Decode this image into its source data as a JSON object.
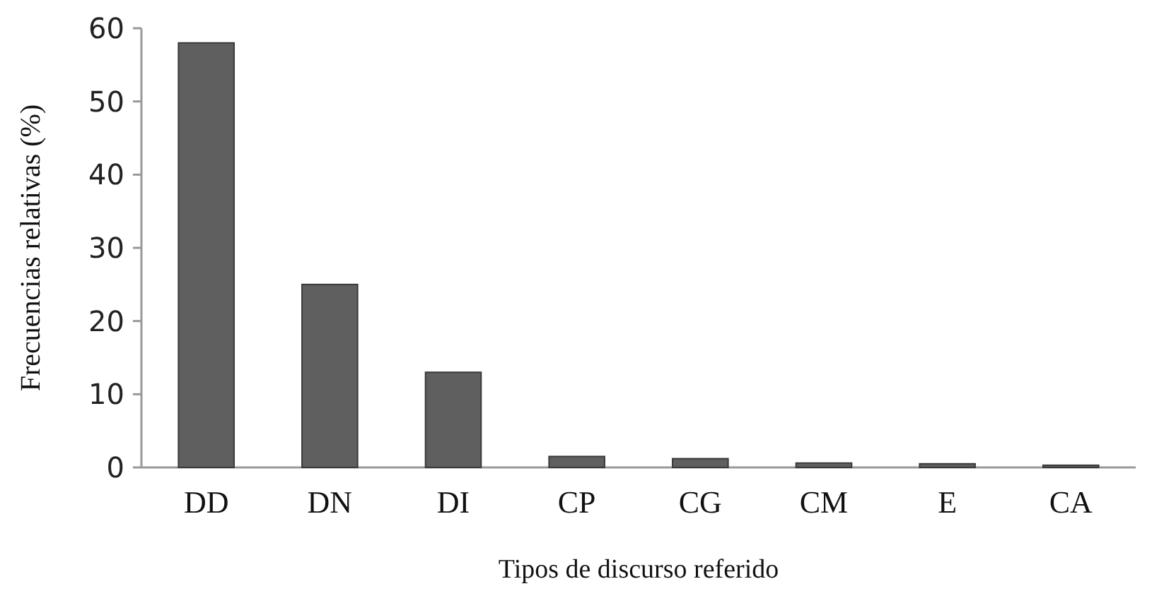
{
  "chart_data": {
    "type": "bar",
    "xlabel": "Tipos de discurso referido",
    "ylabel": "Frecuencias relativas (%)",
    "categories": [
      "DD",
      "DN",
      "DI",
      "CP",
      "CG",
      "CM",
      "E",
      "CA"
    ],
    "values": [
      58,
      25,
      13,
      1.5,
      1.2,
      0.6,
      0.5,
      0.3
    ],
    "color": "#5f5f5f",
    "ylim": [
      0,
      60
    ],
    "yticks": [
      0,
      10,
      20,
      30,
      40,
      50,
      60
    ],
    "grid": false
  }
}
